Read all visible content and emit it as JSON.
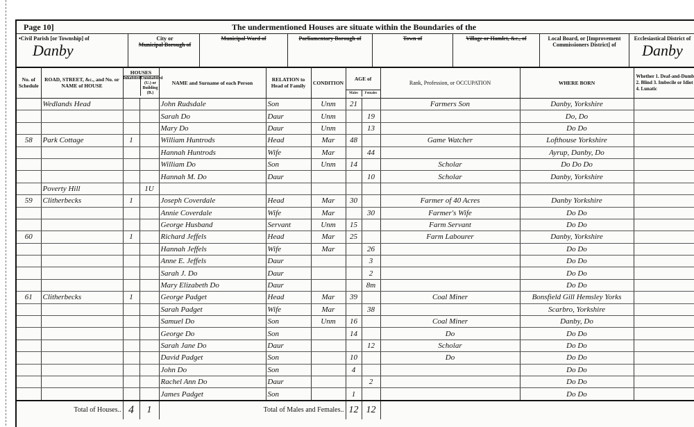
{
  "header": {
    "page": "Page 10]",
    "title": "The undermentioned Houses are situate within the Boundaries of the"
  },
  "boundaries": [
    {
      "label": "•Civil Parish [or Township] of",
      "value": "Danby"
    },
    {
      "label_top": "City or",
      "label": "Municipal Borough of",
      "value": ""
    },
    {
      "label": "Municipal Ward of",
      "value": ""
    },
    {
      "label": "Parliamentary Borough of",
      "value": ""
    },
    {
      "label": "Town of",
      "value": ""
    },
    {
      "label": "Village or Hamlet, &c., of",
      "value": ""
    },
    {
      "label": "Local Board, or [Improvement Commissioners District] of",
      "value": ""
    },
    {
      "label": "Ecclesiastical District of",
      "value": "Danby"
    }
  ],
  "columns": {
    "schedule": "No. of Schedule",
    "road": "ROAD, STREET, &c., and No. or NAME of HOUSE",
    "houses": "HOUSES",
    "inhabited": "Inhabited",
    "uninhabited": "Uninhabited (U.) or Building (B.)",
    "name": "NAME and Surname of each Person",
    "relation": "RELATION to Head of Family",
    "condition": "CONDITION",
    "age": "AGE of",
    "males": "Males",
    "females": "Females",
    "occupation": "Rank, Profession, or OCCUPATION",
    "born": "WHERE BORN",
    "infirmity": "Whether 1. Deaf-and-Dumb 2. Blind 3. Imbecile or Idiot 4. Lunatic"
  },
  "rows": [
    {
      "sched": "",
      "road": "Wedlands Head",
      "inh": "",
      "uninh": "",
      "name": "John Rudsdale",
      "rel": "Son",
      "cond": "Unm",
      "m": "21",
      "f": "",
      "occ": "Farmers Son",
      "born": "Danby, Yorkshire"
    },
    {
      "sched": "",
      "road": "",
      "inh": "",
      "uninh": "",
      "name": "Sarah Do",
      "rel": "Daur",
      "cond": "Unm",
      "m": "",
      "f": "19",
      "occ": "",
      "born": "Do, Do"
    },
    {
      "sched": "",
      "road": "",
      "inh": "",
      "uninh": "",
      "name": "Mary Do",
      "rel": "Daur",
      "cond": "Unm",
      "m": "",
      "f": "13",
      "occ": "",
      "born": "Do Do"
    },
    {
      "sched": "58",
      "road": "Park Cottage",
      "inh": "1",
      "uninh": "",
      "name": "William Huntrods",
      "rel": "Head",
      "cond": "Mar",
      "m": "48",
      "f": "",
      "occ": "Game Watcher",
      "born": "Lofthouse Yorkshire"
    },
    {
      "sched": "",
      "road": "",
      "inh": "",
      "uninh": "",
      "name": "Hannah Huntrods",
      "rel": "Wife",
      "cond": "Mar",
      "m": "",
      "f": "44",
      "occ": "",
      "born": "Ayrup, Danby, Do"
    },
    {
      "sched": "",
      "road": "",
      "inh": "",
      "uninh": "",
      "name": "William Do",
      "rel": "Son",
      "cond": "Unm",
      "m": "14",
      "f": "",
      "occ": "Scholar",
      "born": "Do Do Do"
    },
    {
      "sched": "",
      "road": "",
      "inh": "",
      "uninh": "",
      "name": "Hannah M. Do",
      "rel": "Daur",
      "cond": "",
      "m": "",
      "f": "10",
      "occ": "Scholar",
      "born": "Danby, Yorkshire"
    },
    {
      "sched": "",
      "road": "Poverty Hill",
      "inh": "",
      "uninh": "1U",
      "name": "",
      "rel": "",
      "cond": "",
      "m": "",
      "f": "",
      "occ": "",
      "born": ""
    },
    {
      "sched": "59",
      "road": "Clitherbecks",
      "inh": "1",
      "uninh": "",
      "name": "Joseph Coverdale",
      "rel": "Head",
      "cond": "Mar",
      "m": "30",
      "f": "",
      "occ": "Farmer of 40 Acres",
      "born": "Danby Yorkshire"
    },
    {
      "sched": "",
      "road": "",
      "inh": "",
      "uninh": "",
      "name": "Annie Coverdale",
      "rel": "Wife",
      "cond": "Mar",
      "m": "",
      "f": "30",
      "occ": "Farmer's Wife",
      "born": "Do Do"
    },
    {
      "sched": "",
      "road": "",
      "inh": "",
      "uninh": "",
      "name": "George Husband",
      "rel": "Servant",
      "cond": "Unm",
      "m": "15",
      "f": "",
      "occ": "Farm Servant",
      "born": "Do Do"
    },
    {
      "sched": "60",
      "road": "",
      "inh": "1",
      "uninh": "",
      "name": "Richard Jeffels",
      "rel": "Head",
      "cond": "Mar",
      "m": "25",
      "f": "",
      "occ": "Farm Labourer",
      "born": "Danby, Yorkshire"
    },
    {
      "sched": "",
      "road": "",
      "inh": "",
      "uninh": "",
      "name": "Hannah Jeffels",
      "rel": "Wife",
      "cond": "Mar",
      "m": "",
      "f": "26",
      "occ": "",
      "born": "Do Do"
    },
    {
      "sched": "",
      "road": "",
      "inh": "",
      "uninh": "",
      "name": "Anne E. Jeffels",
      "rel": "Daur",
      "cond": "",
      "m": "",
      "f": "3",
      "occ": "",
      "born": "Do Do"
    },
    {
      "sched": "",
      "road": "",
      "inh": "",
      "uninh": "",
      "name": "Sarah J. Do",
      "rel": "Daur",
      "cond": "",
      "m": "",
      "f": "2",
      "occ": "",
      "born": "Do Do"
    },
    {
      "sched": "",
      "road": "",
      "inh": "",
      "uninh": "",
      "name": "Mary Elizabeth Do",
      "rel": "Daur",
      "cond": "",
      "m": "",
      "f": "8m",
      "occ": "",
      "born": "Do Do"
    },
    {
      "sched": "61",
      "road": "Clitherbecks",
      "inh": "1",
      "uninh": "",
      "name": "George Padget",
      "rel": "Head",
      "cond": "Mar",
      "m": "39",
      "f": "",
      "occ": "Coal Miner",
      "born": "Bonsfield Gill Hemsley Yorks"
    },
    {
      "sched": "",
      "road": "",
      "inh": "",
      "uninh": "",
      "name": "Sarah Padget",
      "rel": "Wife",
      "cond": "Mar",
      "m": "",
      "f": "38",
      "occ": "",
      "born": "Scarbro, Yorkshire"
    },
    {
      "sched": "",
      "road": "",
      "inh": "",
      "uninh": "",
      "name": "Samuel Do",
      "rel": "Son",
      "cond": "Unm",
      "m": "16",
      "f": "",
      "occ": "Coal Miner",
      "born": "Danby, Do"
    },
    {
      "sched": "",
      "road": "",
      "inh": "",
      "uninh": "",
      "name": "George Do",
      "rel": "Son",
      "cond": "",
      "m": "14",
      "f": "",
      "occ": "Do",
      "born": "Do Do"
    },
    {
      "sched": "",
      "road": "",
      "inh": "",
      "uninh": "",
      "name": "Sarah Jane Do",
      "rel": "Daur",
      "cond": "",
      "m": "",
      "f": "12",
      "occ": "Scholar",
      "born": "Do Do"
    },
    {
      "sched": "",
      "road": "",
      "inh": "",
      "uninh": "",
      "name": "David Padget",
      "rel": "Son",
      "cond": "",
      "m": "10",
      "f": "",
      "occ": "Do",
      "born": "Do Do"
    },
    {
      "sched": "",
      "road": "",
      "inh": "",
      "uninh": "",
      "name": "John Do",
      "rel": "Son",
      "cond": "",
      "m": "4",
      "f": "",
      "occ": "",
      "born": "Do Do"
    },
    {
      "sched": "",
      "road": "",
      "inh": "",
      "uninh": "",
      "name": "Rachel Ann Do",
      "rel": "Daur",
      "cond": "",
      "m": "",
      "f": "2",
      "occ": "",
      "born": "Do Do"
    },
    {
      "sched": "",
      "road": "",
      "inh": "",
      "uninh": "",
      "name": "James Padget",
      "rel": "Son",
      "cond": "",
      "m": "1",
      "f": "",
      "occ": "",
      "born": "Do Do"
    }
  ],
  "totals": {
    "houses_label": "Total of Houses..",
    "inhabited": "4",
    "uninhabited": "1",
    "persons_label": "Total of Males and Females..",
    "males": "12",
    "females": "12"
  }
}
